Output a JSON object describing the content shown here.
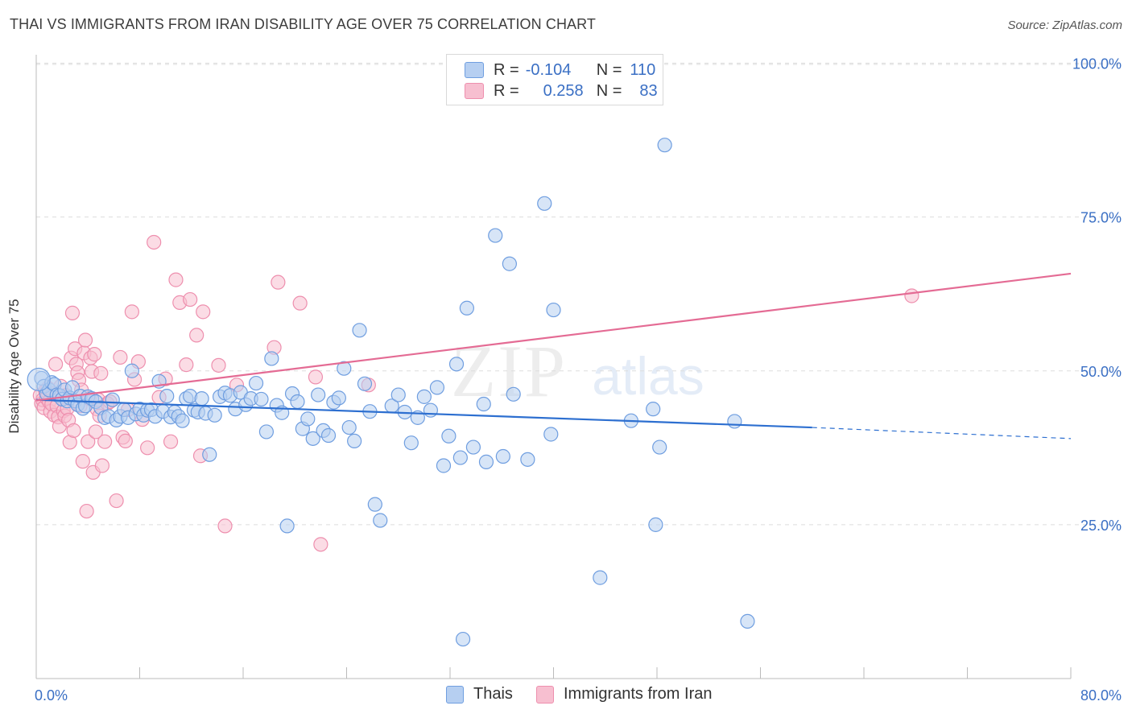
{
  "header": {
    "title": "THAI VS IMMIGRANTS FROM IRAN DISABILITY AGE OVER 75 CORRELATION CHART",
    "source": "Source: ZipAtlas.com"
  },
  "legend": {
    "row1": {
      "r_label": "R =",
      "r_value": "-0.104",
      "n_label": "N =",
      "n_value": "110"
    },
    "row2": {
      "r_label": "R =",
      "r_value": "0.258",
      "n_label": "N =",
      "n_value": "83"
    }
  },
  "bottom_legend": {
    "series1": "Thais",
    "series2": "Immigrants from Iran"
  },
  "watermark": {
    "zip": "ZIP",
    "atlas": "atlas"
  },
  "colors": {
    "blue_fill": "#b6cff1",
    "blue_stroke": "#6f9ee0",
    "blue_line": "#2d6fd0",
    "pink_fill": "#f7bfd0",
    "pink_stroke": "#ee8fae",
    "pink_line": "#e46b94",
    "tick_label": "#3a6fc4",
    "grid": "#dddddd"
  },
  "chart_data": {
    "type": "scatter",
    "title": "THAI VS IMMIGRANTS FROM IRAN DISABILITY AGE OVER 75 CORRELATION CHART",
    "xlabel": "",
    "ylabel": "Disability Age Over 75",
    "xlim": [
      0,
      80
    ],
    "ylim": [
      0,
      105
    ],
    "x_tick_labels": [
      "0.0%",
      "80.0%"
    ],
    "y_ticks": [
      25,
      50,
      75,
      100
    ],
    "y_tick_labels": [
      "25.0%",
      "50.0%",
      "75.0%",
      "100.0%"
    ],
    "grid": "horizontal dashed",
    "legend_position": "top-center",
    "series": [
      {
        "name": "Thais",
        "color": "#6f9ee0",
        "r": -0.104,
        "n": 110,
        "trend": {
          "x": [
            0,
            60
          ],
          "y": [
            45.3,
            40.8
          ]
        },
        "trend_extension": {
          "x": [
            60,
            80
          ],
          "y": [
            40.8,
            39.0
          ]
        },
        "points": [
          [
            0.4,
            48.8
          ],
          [
            0.6,
            47.5
          ],
          [
            0.8,
            46.3
          ],
          [
            1.0,
            46.9
          ],
          [
            1.2,
            48.1
          ],
          [
            1.4,
            47.8
          ],
          [
            1.6,
            46.1
          ],
          [
            1.8,
            46.0
          ],
          [
            2.0,
            45.4
          ],
          [
            2.2,
            46.9
          ],
          [
            2.4,
            45.1
          ],
          [
            2.6,
            45.6
          ],
          [
            2.8,
            47.3
          ],
          [
            3.0,
            45.1
          ],
          [
            3.2,
            44.5
          ],
          [
            3.4,
            45.9
          ],
          [
            3.6,
            43.9
          ],
          [
            3.8,
            44.3
          ],
          [
            4.0,
            45.8
          ],
          [
            4.3,
            45.5
          ],
          [
            4.6,
            45.0
          ],
          [
            5.0,
            44.0
          ],
          [
            5.3,
            42.4
          ],
          [
            5.6,
            42.6
          ],
          [
            5.9,
            45.3
          ],
          [
            6.2,
            42.0
          ],
          [
            6.5,
            42.6
          ],
          [
            6.8,
            43.7
          ],
          [
            7.1,
            42.4
          ],
          [
            7.4,
            50.0
          ],
          [
            7.7,
            43.0
          ],
          [
            8.0,
            43.8
          ],
          [
            8.3,
            42.8
          ],
          [
            8.6,
            43.6
          ],
          [
            8.9,
            43.7
          ],
          [
            9.2,
            42.6
          ],
          [
            9.5,
            48.3
          ],
          [
            9.8,
            43.4
          ],
          [
            10.1,
            45.9
          ],
          [
            10.4,
            42.5
          ],
          [
            10.7,
            43.3
          ],
          [
            11.0,
            42.6
          ],
          [
            11.3,
            41.9
          ],
          [
            11.6,
            45.5
          ],
          [
            11.9,
            45.9
          ],
          [
            12.2,
            43.6
          ],
          [
            12.5,
            43.3
          ],
          [
            12.8,
            45.5
          ],
          [
            13.1,
            43.1
          ],
          [
            13.4,
            36.4
          ],
          [
            13.8,
            42.8
          ],
          [
            14.2,
            45.8
          ],
          [
            14.6,
            46.4
          ],
          [
            15.0,
            46.0
          ],
          [
            15.4,
            43.8
          ],
          [
            15.8,
            46.5
          ],
          [
            16.2,
            44.5
          ],
          [
            16.6,
            45.5
          ],
          [
            17.0,
            48.0
          ],
          [
            17.4,
            45.4
          ],
          [
            17.8,
            40.1
          ],
          [
            18.2,
            52.0
          ],
          [
            18.6,
            44.4
          ],
          [
            19.0,
            43.2
          ],
          [
            19.4,
            24.8
          ],
          [
            19.8,
            46.3
          ],
          [
            20.2,
            45.0
          ],
          [
            20.6,
            40.6
          ],
          [
            21.0,
            42.2
          ],
          [
            21.4,
            39.0
          ],
          [
            21.8,
            46.1
          ],
          [
            22.2,
            40.3
          ],
          [
            22.6,
            39.5
          ],
          [
            23.0,
            44.9
          ],
          [
            23.4,
            45.6
          ],
          [
            23.8,
            50.4
          ],
          [
            24.2,
            40.8
          ],
          [
            24.6,
            38.6
          ],
          [
            25.0,
            56.6
          ],
          [
            25.4,
            47.9
          ],
          [
            25.8,
            43.4
          ],
          [
            26.2,
            28.3
          ],
          [
            26.6,
            25.7
          ],
          [
            27.5,
            44.3
          ],
          [
            28.0,
            46.1
          ],
          [
            28.5,
            43.3
          ],
          [
            29.5,
            42.4
          ],
          [
            29.0,
            38.3
          ],
          [
            30.0,
            45.8
          ],
          [
            30.5,
            43.6
          ],
          [
            31.0,
            47.3
          ],
          [
            31.5,
            34.6
          ],
          [
            31.9,
            39.4
          ],
          [
            32.5,
            51.1
          ],
          [
            32.8,
            35.9
          ],
          [
            33.0,
            6.4
          ],
          [
            33.3,
            60.2
          ],
          [
            33.8,
            37.6
          ],
          [
            34.6,
            44.6
          ],
          [
            34.8,
            35.2
          ],
          [
            35.5,
            72.0
          ],
          [
            36.1,
            36.1
          ],
          [
            36.6,
            67.4
          ],
          [
            36.9,
            46.2
          ],
          [
            38.0,
            35.6
          ],
          [
            39.3,
            77.2
          ],
          [
            39.8,
            39.7
          ],
          [
            40.0,
            59.9
          ],
          [
            43.6,
            16.4
          ],
          [
            46.0,
            41.9
          ],
          [
            47.7,
            43.8
          ],
          [
            47.9,
            25.0
          ],
          [
            48.2,
            37.6
          ],
          [
            48.6,
            86.7
          ],
          [
            54.0,
            41.8
          ],
          [
            55.0,
            9.3
          ]
        ]
      },
      {
        "name": "Immigrants from Iran",
        "color": "#ee8fae",
        "r": 0.258,
        "n": 83,
        "trend": {
          "x": [
            0,
            80
          ],
          "y": [
            45.2,
            65.8
          ]
        },
        "points": [
          [
            0.3,
            46.0
          ],
          [
            0.4,
            44.7
          ],
          [
            0.5,
            45.3
          ],
          [
            0.6,
            44.0
          ],
          [
            0.7,
            46.8
          ],
          [
            0.8,
            45.6
          ],
          [
            0.9,
            47.2
          ],
          [
            1.0,
            45.0
          ],
          [
            1.1,
            43.4
          ],
          [
            1.2,
            44.6
          ],
          [
            1.3,
            46.3
          ],
          [
            1.4,
            42.8
          ],
          [
            1.5,
            51.1
          ],
          [
            1.6,
            44.3
          ],
          [
            1.7,
            42.5
          ],
          [
            1.8,
            41.0
          ],
          [
            1.9,
            47.5
          ],
          [
            2.0,
            45.5
          ],
          [
            2.1,
            43.5
          ],
          [
            2.2,
            42.7
          ],
          [
            2.3,
            46.0
          ],
          [
            2.4,
            43.9
          ],
          [
            2.5,
            42.0
          ],
          [
            2.6,
            38.4
          ],
          [
            2.7,
            52.1
          ],
          [
            2.8,
            59.4
          ],
          [
            2.9,
            40.3
          ],
          [
            3.0,
            53.6
          ],
          [
            3.1,
            51.1
          ],
          [
            3.2,
            49.7
          ],
          [
            3.3,
            48.5
          ],
          [
            3.4,
            44.3
          ],
          [
            3.5,
            46.9
          ],
          [
            3.6,
            35.3
          ],
          [
            3.7,
            52.9
          ],
          [
            3.8,
            55.0
          ],
          [
            3.9,
            27.2
          ],
          [
            4.0,
            38.5
          ],
          [
            4.1,
            45.5
          ],
          [
            4.2,
            52.1
          ],
          [
            4.3,
            49.9
          ],
          [
            4.4,
            33.5
          ],
          [
            4.5,
            52.7
          ],
          [
            4.6,
            40.1
          ],
          [
            4.7,
            43.8
          ],
          [
            4.8,
            45.3
          ],
          [
            4.9,
            42.7
          ],
          [
            5.0,
            49.6
          ],
          [
            5.1,
            34.6
          ],
          [
            5.3,
            38.5
          ],
          [
            5.5,
            44.7
          ],
          [
            5.7,
            45.0
          ],
          [
            6.2,
            28.9
          ],
          [
            6.5,
            52.2
          ],
          [
            6.7,
            39.2
          ],
          [
            6.9,
            38.6
          ],
          [
            7.1,
            43.7
          ],
          [
            7.4,
            59.6
          ],
          [
            7.6,
            48.6
          ],
          [
            7.9,
            51.5
          ],
          [
            8.2,
            42.1
          ],
          [
            8.6,
            37.5
          ],
          [
            9.1,
            70.9
          ],
          [
            9.5,
            45.7
          ],
          [
            10.0,
            48.7
          ],
          [
            10.4,
            38.5
          ],
          [
            10.8,
            64.8
          ],
          [
            11.1,
            61.1
          ],
          [
            11.9,
            61.6
          ],
          [
            12.4,
            55.8
          ],
          [
            12.7,
            36.2
          ],
          [
            12.9,
            59.6
          ],
          [
            14.1,
            50.9
          ],
          [
            14.6,
            24.8
          ],
          [
            15.5,
            47.7
          ],
          [
            18.4,
            53.8
          ],
          [
            18.7,
            64.4
          ],
          [
            20.4,
            61.0
          ],
          [
            21.6,
            49.0
          ],
          [
            22.0,
            21.8
          ],
          [
            67.7,
            62.2
          ],
          [
            25.7,
            47.7
          ],
          [
            11.6,
            51.0
          ]
        ]
      }
    ]
  }
}
